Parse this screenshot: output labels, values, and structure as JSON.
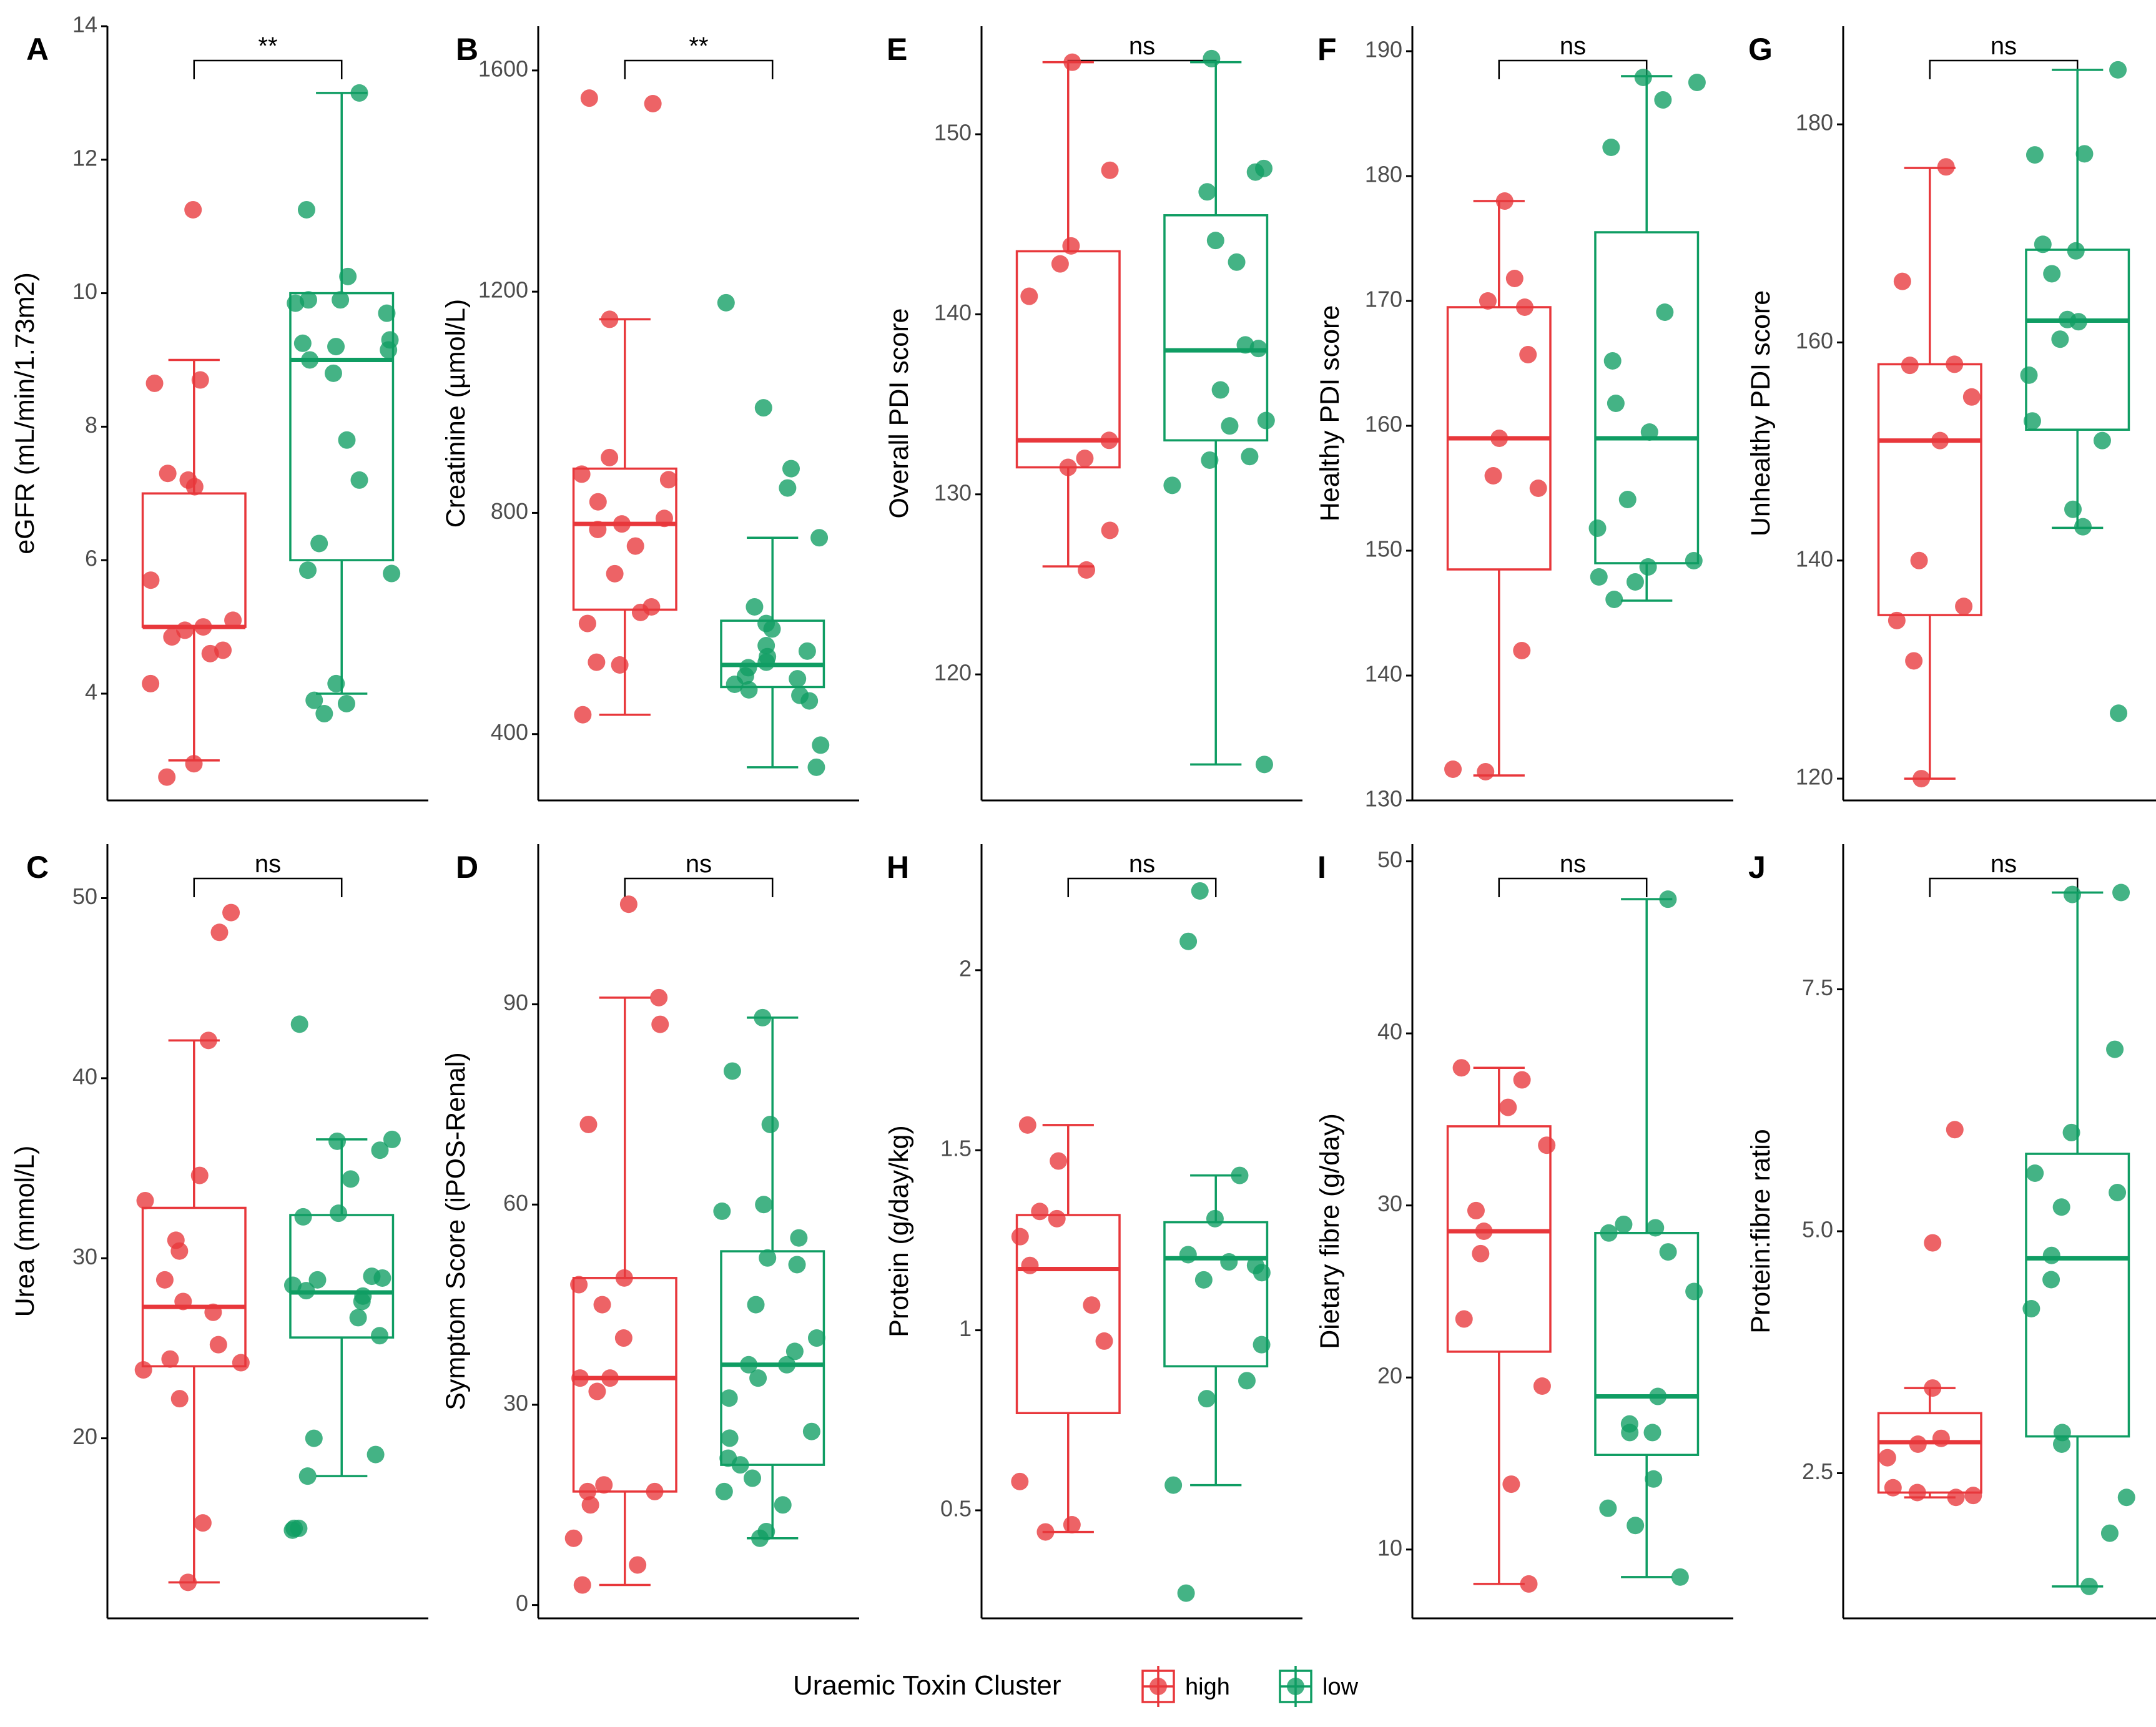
{
  "colors": {
    "high": "#E8373B",
    "low": "#0F9D63",
    "axis": "#000000",
    "tick": "#4d4d4d"
  },
  "legend": {
    "title": "Uraemic Toxin Cluster",
    "entries": [
      "high",
      "low"
    ]
  },
  "chart_data": [
    {
      "panel": "A",
      "type": "boxplot+jitter",
      "ylabel": "eGFR (mL/min/1.73m2)",
      "ylim": [
        2.4,
        14
      ],
      "yticks": [
        4,
        6,
        8,
        10,
        12,
        14
      ],
      "significance": "**",
      "groups": [
        {
          "name": "high",
          "whisker_low": 3.0,
          "q1": 5.0,
          "median": 5.0,
          "q3": 7.0,
          "whisker_high": 9.0,
          "points": [
            11.25,
            8.7,
            8.65,
            7.3,
            7.2,
            7.1,
            5.7,
            5.1,
            5.0,
            4.95,
            4.85,
            4.65,
            4.6,
            4.15,
            2.95,
            2.75
          ]
        },
        {
          "name": "low",
          "whisker_low": 4.0,
          "q1": 6.0,
          "median": 9.0,
          "q3": 10.0,
          "whisker_high": 13.0,
          "points": [
            13.0,
            11.25,
            10.25,
            9.9,
            9.9,
            9.85,
            9.7,
            9.3,
            9.25,
            9.2,
            9.15,
            9.0,
            8.8,
            7.8,
            7.2,
            6.25,
            5.85,
            5.8,
            4.15,
            3.9,
            3.85,
            3.7
          ]
        }
      ]
    },
    {
      "panel": "B",
      "type": "boxplot+jitter",
      "ylabel": "Creatinine (µmol/L)",
      "ylim": [
        280,
        1680
      ],
      "yticks": [
        400,
        800,
        1200,
        1600
      ],
      "significance": "**",
      "groups": [
        {
          "name": "high",
          "whisker_low": 435,
          "q1": 625,
          "median": 780,
          "q3": 880,
          "whisker_high": 1150,
          "points": [
            1550,
            1540,
            1150,
            900,
            870,
            860,
            820,
            790,
            780,
            770,
            740,
            690,
            630,
            620,
            600,
            530,
            525,
            435
          ]
        },
        {
          "name": "low",
          "whisker_low": 340,
          "q1": 485,
          "median": 525,
          "q3": 605,
          "whisker_high": 755,
          "points": [
            1180,
            990,
            880,
            845,
            755,
            630,
            600,
            590,
            560,
            550,
            540,
            530,
            520,
            505,
            500,
            490,
            480,
            470,
            460,
            380,
            340
          ]
        }
      ]
    },
    {
      "panel": "C",
      "type": "boxplot+jitter",
      "ylabel": "Urea (mmol/L)",
      "ylim": [
        10,
        53
      ],
      "yticks": [
        20,
        30,
        40,
        50
      ],
      "significance": "ns",
      "groups": [
        {
          "name": "high",
          "whisker_low": 12.0,
          "q1": 24.0,
          "median": 27.3,
          "q3": 32.8,
          "whisker_high": 42.1,
          "points": [
            49.2,
            48.1,
            42.1,
            34.6,
            33.2,
            31.0,
            30.4,
            28.8,
            27.6,
            27.0,
            25.2,
            24.4,
            24.2,
            23.8,
            22.2,
            15.3,
            12.0
          ]
        },
        {
          "name": "low",
          "whisker_low": 17.9,
          "q1": 25.6,
          "median": 28.1,
          "q3": 32.4,
          "whisker_high": 36.6,
          "points": [
            43.0,
            36.6,
            36.5,
            36.0,
            34.4,
            32.5,
            32.3,
            29.0,
            28.9,
            28.8,
            28.5,
            28.2,
            27.9,
            27.6,
            26.7,
            25.7,
            20.0,
            19.1,
            17.9,
            15.0,
            15.0,
            14.9
          ]
        }
      ]
    },
    {
      "panel": "D",
      "type": "boxplot+jitter",
      "ylabel": "Symptom Score (iPOS-Renal)",
      "ylim": [
        -2,
        114
      ],
      "yticks": [
        0,
        30,
        60,
        90
      ],
      "significance": "ns",
      "groups": [
        {
          "name": "high",
          "whisker_low": 3,
          "q1": 17,
          "median": 34,
          "q3": 49,
          "whisker_high": 91,
          "points": [
            105,
            91,
            87,
            72,
            49,
            48,
            45,
            40,
            34,
            34,
            32,
            18,
            17,
            17,
            15,
            10,
            6,
            3
          ]
        },
        {
          "name": "low",
          "whisker_low": 10,
          "q1": 21,
          "median": 36,
          "q3": 53,
          "whisker_high": 88,
          "points": [
            88,
            80,
            72,
            60,
            59,
            55,
            52,
            51,
            45,
            40,
            38,
            36,
            36,
            34,
            31,
            26,
            25,
            22,
            21,
            19,
            17,
            15,
            11,
            10
          ]
        }
      ]
    },
    {
      "panel": "E",
      "type": "boxplot+jitter",
      "ylabel": "Overall PDI score",
      "ylim": [
        113,
        156
      ],
      "yticks": [
        120,
        130,
        140,
        150
      ],
      "significance": "ns",
      "groups": [
        {
          "name": "high",
          "whisker_low": 126,
          "q1": 131.5,
          "median": 133,
          "q3": 143.5,
          "whisker_high": 154,
          "points": [
            154,
            148,
            143.8,
            142.8,
            141,
            133,
            132,
            131.5,
            128,
            125.8
          ]
        },
        {
          "name": "low",
          "whisker_low": 115,
          "q1": 133,
          "median": 138,
          "q3": 145.5,
          "whisker_high": 154,
          "points": [
            154.2,
            148.1,
            147.9,
            146.8,
            144.1,
            142.9,
            138.3,
            138.1,
            135.8,
            134.1,
            133.8,
            132.1,
            131.9,
            130.5,
            115
          ]
        }
      ]
    },
    {
      "panel": "F",
      "type": "boxplot+jitter",
      "ylabel": "Healthy PDI score",
      "ylim": [
        130,
        192
      ],
      "yticks": [
        130,
        140,
        150,
        160,
        170,
        180,
        190
      ],
      "significance": "ns",
      "groups": [
        {
          "name": "high",
          "whisker_low": 132,
          "q1": 148.5,
          "median": 159,
          "q3": 169.5,
          "whisker_high": 178,
          "points": [
            178,
            171.8,
            170,
            169.5,
            165.7,
            159,
            156,
            155,
            142,
            132.5,
            132.3
          ]
        },
        {
          "name": "low",
          "whisker_low": 146,
          "q1": 149,
          "median": 159,
          "q3": 175.5,
          "whisker_high": 188,
          "points": [
            187.9,
            187.5,
            186.1,
            182.3,
            169.1,
            165.2,
            161.8,
            159.5,
            154.1,
            151.8,
            149.2,
            148.7,
            147.9,
            147.5,
            146.1
          ]
        }
      ]
    },
    {
      "panel": "G",
      "type": "boxplot+jitter",
      "ylabel": "Unhealthy PDI score",
      "ylim": [
        118,
        189
      ],
      "yticks": [
        120,
        140,
        160,
        180
      ],
      "significance": "ns",
      "groups": [
        {
          "name": "high",
          "whisker_low": 120,
          "q1": 135,
          "median": 151,
          "q3": 158,
          "whisker_high": 176,
          "points": [
            176.1,
            165.6,
            158,
            157.9,
            155,
            151,
            140,
            135.8,
            134.5,
            130.8,
            120
          ]
        },
        {
          "name": "low",
          "whisker_low": 143,
          "q1": 152,
          "median": 162,
          "q3": 168.5,
          "whisker_high": 185,
          "points": [
            185,
            177.3,
            177.2,
            169,
            168.4,
            166.3,
            162.1,
            161.9,
            160.3,
            157,
            152.8,
            151,
            144.7,
            143.1,
            126
          ]
        }
      ]
    },
    {
      "panel": "H",
      "type": "boxplot+jitter",
      "ylabel": "Protein (g/day/kg)",
      "ylim": [
        0.2,
        2.35
      ],
      "yticks": [
        0.5,
        1.0,
        1.5,
        2.0
      ],
      "significance": "ns",
      "groups": [
        {
          "name": "high",
          "whisker_low": 0.44,
          "q1": 0.77,
          "median": 1.17,
          "q3": 1.32,
          "whisker_high": 1.57,
          "points": [
            1.57,
            1.47,
            1.33,
            1.31,
            1.26,
            1.18,
            1.07,
            0.97,
            0.58,
            0.46,
            0.44
          ]
        },
        {
          "name": "low",
          "whisker_low": 0.57,
          "q1": 0.9,
          "median": 1.2,
          "q3": 1.3,
          "whisker_high": 1.43,
          "points": [
            2.22,
            2.08,
            1.43,
            1.31,
            1.21,
            1.19,
            1.18,
            1.16,
            1.14,
            0.96,
            0.86,
            0.81,
            0.57,
            0.27
          ]
        }
      ]
    },
    {
      "panel": "I",
      "type": "boxplot+jitter",
      "ylabel": "Dietary fibre (g/day)",
      "ylim": [
        6,
        51
      ],
      "yticks": [
        10,
        20,
        30,
        40,
        50
      ],
      "significance": "ns",
      "groups": [
        {
          "name": "high",
          "whisker_low": 8,
          "q1": 21.5,
          "median": 28.5,
          "q3": 34.6,
          "whisker_high": 38,
          "points": [
            38,
            37.3,
            35.7,
            33.5,
            29.7,
            28.5,
            27.2,
            23.4,
            19.5,
            13.8,
            8
          ]
        },
        {
          "name": "low",
          "whisker_low": 8.4,
          "q1": 15.5,
          "median": 18.9,
          "q3": 28.4,
          "whisker_high": 47.8,
          "points": [
            47.8,
            28.9,
            28.7,
            28.4,
            27.3,
            25,
            18.9,
            17.3,
            16.8,
            16.8,
            14.1,
            12.4,
            11.4,
            8.4
          ]
        }
      ]
    },
    {
      "panel": "J",
      "type": "boxplot+jitter",
      "ylabel": "Protein:fibre ratio",
      "ylim": [
        1.0,
        9.0
      ],
      "yticks": [
        2.5,
        5.0,
        7.5
      ],
      "significance": "ns",
      "ytick_labels": [
        "2.5",
        "5.0",
        "7.5"
      ],
      "groups": [
        {
          "name": "high",
          "whisker_low": 2.25,
          "q1": 2.3,
          "median": 2.82,
          "q3": 3.12,
          "whisker_high": 3.38,
          "points": [
            6.05,
            4.88,
            3.38,
            2.86,
            2.8,
            2.66,
            2.35,
            2.3,
            2.27,
            2.25
          ]
        },
        {
          "name": "low",
          "whisker_low": 1.33,
          "q1": 2.88,
          "median": 4.72,
          "q3": 5.8,
          "whisker_high": 8.5,
          "points": [
            8.5,
            8.48,
            6.88,
            6.02,
            5.6,
            5.4,
            5.25,
            4.75,
            4.5,
            4.2,
            2.92,
            2.8,
            2.25,
            1.88,
            1.33
          ]
        }
      ]
    }
  ]
}
